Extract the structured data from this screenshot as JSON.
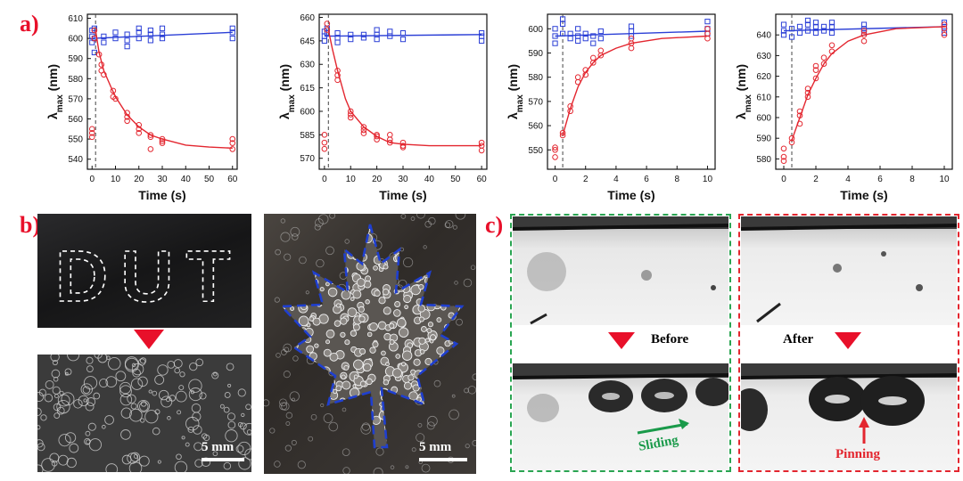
{
  "labels": {
    "a": "a)",
    "b": "b)",
    "c": "c)"
  },
  "chart_data": [
    {
      "type": "scatter",
      "xlabel": "Time (s)",
      "ylabel_base": "λ",
      "ylabel_sub": "max",
      "ylabel_unit": " (nm)",
      "xlim": [
        -2,
        62
      ],
      "ylim": [
        535,
        612
      ],
      "xticks": [
        0,
        10,
        20,
        30,
        40,
        50,
        60
      ],
      "yticks": [
        540,
        550,
        560,
        570,
        580,
        590,
        600,
        610
      ],
      "marker_x": 1.5,
      "series": [
        {
          "marker": "square",
          "color": "#2b3fd6",
          "points": [
            [
              0,
              598
            ],
            [
              0,
              601
            ],
            [
              0,
              604
            ],
            [
              1,
              593
            ],
            [
              1,
              605
            ],
            [
              1,
              600
            ],
            [
              5,
              598
            ],
            [
              5,
              601
            ],
            [
              10,
              600
            ],
            [
              10,
              603
            ],
            [
              15,
              596
            ],
            [
              15,
              599
            ],
            [
              15,
              602
            ],
            [
              20,
              600
            ],
            [
              20,
              603
            ],
            [
              20,
              605
            ],
            [
              25,
              599
            ],
            [
              25,
              602
            ],
            [
              25,
              604
            ],
            [
              30,
              600
            ],
            [
              30,
              602
            ],
            [
              30,
              605
            ],
            [
              60,
              600
            ],
            [
              60,
              603
            ],
            [
              60,
              605
            ]
          ],
          "fit": [
            [
              0,
              600
            ],
            [
              60,
              603
            ]
          ]
        },
        {
          "marker": "circle",
          "color": "#e3262f",
          "points": [
            [
              0,
              551
            ],
            [
              0,
              555
            ],
            [
              0,
              553
            ],
            [
              1,
              604
            ],
            [
              1,
              600
            ],
            [
              3,
              592
            ],
            [
              4,
              584
            ],
            [
              4,
              587
            ],
            [
              5,
              582
            ],
            [
              9,
              574
            ],
            [
              9,
              571
            ],
            [
              10,
              570
            ],
            [
              15,
              563
            ],
            [
              15,
              561
            ],
            [
              15,
              559
            ],
            [
              20,
              557
            ],
            [
              20,
              555
            ],
            [
              20,
              553
            ],
            [
              25,
              552
            ],
            [
              25,
              545
            ],
            [
              25,
              551
            ],
            [
              30,
              550
            ],
            [
              30,
              548
            ],
            [
              30,
              549
            ],
            [
              60,
              550
            ],
            [
              60,
              548
            ],
            [
              60,
              545
            ]
          ],
          "fit": [
            [
              1.5,
              604
            ],
            [
              3,
              593
            ],
            [
              5,
              584
            ],
            [
              8,
              576
            ],
            [
              10,
              571
            ],
            [
              15,
              562
            ],
            [
              20,
              556
            ],
            [
              25,
              552
            ],
            [
              30,
              550
            ],
            [
              40,
              547
            ],
            [
              50,
              546
            ],
            [
              60,
              545.5
            ]
          ]
        }
      ]
    },
    {
      "type": "scatter",
      "xlabel": "Time (s)",
      "ylabel_base": "λ",
      "ylabel_sub": "max",
      "ylabel_unit": " (nm)",
      "xlim": [
        -2,
        62
      ],
      "ylim": [
        563,
        662
      ],
      "xticks": [
        0,
        10,
        20,
        30,
        40,
        50,
        60
      ],
      "yticks": [
        570,
        585,
        600,
        615,
        630,
        645,
        660
      ],
      "marker_x": 1.5,
      "series": [
        {
          "marker": "square",
          "color": "#2b3fd6",
          "points": [
            [
              0,
              645
            ],
            [
              0,
              648
            ],
            [
              0,
              651
            ],
            [
              1,
              650
            ],
            [
              1,
              653
            ],
            [
              5,
              644
            ],
            [
              5,
              647
            ],
            [
              5,
              650
            ],
            [
              10,
              646
            ],
            [
              10,
              649
            ],
            [
              15,
              647
            ],
            [
              15,
              649
            ],
            [
              20,
              646
            ],
            [
              20,
              649
            ],
            [
              20,
              652
            ],
            [
              25,
              648
            ],
            [
              25,
              651
            ],
            [
              30,
              646
            ],
            [
              30,
              650
            ],
            [
              60,
              645
            ],
            [
              60,
              648
            ],
            [
              60,
              650
            ]
          ],
          "fit": [
            [
              0,
              648
            ],
            [
              60,
              649
            ]
          ]
        },
        {
          "marker": "circle",
          "color": "#e3262f",
          "points": [
            [
              0,
              585
            ],
            [
              0,
              580
            ],
            [
              0,
              576
            ],
            [
              1,
              656
            ],
            [
              1,
              652
            ],
            [
              5,
              626
            ],
            [
              5,
              623
            ],
            [
              5,
              620
            ],
            [
              10,
              600
            ],
            [
              10,
              598
            ],
            [
              10,
              596
            ],
            [
              15,
              590
            ],
            [
              15,
              588
            ],
            [
              15,
              586
            ],
            [
              20,
              584
            ],
            [
              20,
              582
            ],
            [
              20,
              585
            ],
            [
              25,
              585
            ],
            [
              25,
              582
            ],
            [
              25,
              580
            ],
            [
              30,
              580
            ],
            [
              30,
              578
            ],
            [
              30,
              577
            ],
            [
              60,
              580
            ],
            [
              60,
              578
            ],
            [
              60,
              575
            ]
          ],
          "fit": [
            [
              1.5,
              652
            ],
            [
              3,
              640
            ],
            [
              5,
              626
            ],
            [
              8,
              608
            ],
            [
              10,
              600
            ],
            [
              15,
              590
            ],
            [
              20,
              584
            ],
            [
              25,
              580
            ],
            [
              30,
              579
            ],
            [
              40,
              578
            ],
            [
              60,
              578
            ]
          ]
        }
      ]
    },
    {
      "type": "scatter",
      "xlabel": "Time (s)",
      "ylabel_base": "λ",
      "ylabel_sub": "max",
      "ylabel_unit": " (nm)",
      "xlim": [
        -0.5,
        10.5
      ],
      "ylim": [
        542,
        606
      ],
      "xticks": [
        0,
        2,
        4,
        6,
        8,
        10
      ],
      "yticks": [
        550,
        560,
        570,
        580,
        590,
        600
      ],
      "marker_x": 0.5,
      "series": [
        {
          "marker": "square",
          "color": "#2b3fd6",
          "points": [
            [
              0,
              594
            ],
            [
              0,
              597
            ],
            [
              0,
              600
            ],
            [
              0.5,
              598
            ],
            [
              0.5,
              602
            ],
            [
              0.5,
              604
            ],
            [
              1,
              596
            ],
            [
              1,
              598
            ],
            [
              1.5,
              595
            ],
            [
              1.5,
              597
            ],
            [
              1.5,
              600
            ],
            [
              2,
              596
            ],
            [
              2,
              598
            ],
            [
              2.5,
              594
            ],
            [
              2.5,
              597
            ],
            [
              3,
              596
            ],
            [
              3,
              599
            ],
            [
              5,
              597
            ],
            [
              5,
              599
            ],
            [
              5,
              601
            ],
            [
              10,
              598
            ],
            [
              10,
              600
            ],
            [
              10,
              603
            ]
          ],
          "fit": [
            [
              0,
              597
            ],
            [
              10,
              599
            ]
          ]
        },
        {
          "marker": "circle",
          "color": "#e3262f",
          "points": [
            [
              0,
              547
            ],
            [
              0,
              550
            ],
            [
              0,
              551
            ],
            [
              0.5,
              556
            ],
            [
              0.5,
              557
            ],
            [
              1,
              566
            ],
            [
              1,
              568
            ],
            [
              1.5,
              578
            ],
            [
              1.5,
              580
            ],
            [
              2,
              581
            ],
            [
              2,
              583
            ],
            [
              2.5,
              586
            ],
            [
              2.5,
              588
            ],
            [
              3,
              589
            ],
            [
              3,
              591
            ],
            [
              5,
              592
            ],
            [
              5,
              594
            ],
            [
              5,
              596
            ],
            [
              10,
              596
            ],
            [
              10,
              598
            ],
            [
              10,
              600
            ]
          ],
          "fit": [
            [
              0.5,
              556
            ],
            [
              1,
              567
            ],
            [
              1.5,
              576
            ],
            [
              2,
              582
            ],
            [
              2.5,
              586
            ],
            [
              3,
              589
            ],
            [
              4,
              592
            ],
            [
              5,
              594
            ],
            [
              7,
              596
            ],
            [
              10,
              597
            ]
          ]
        }
      ]
    },
    {
      "type": "scatter",
      "xlabel": "Time (s)",
      "ylabel_base": "λ",
      "ylabel_sub": "max",
      "ylabel_unit": " (nm)",
      "xlim": [
        -0.5,
        10.5
      ],
      "ylim": [
        575,
        650
      ],
      "xticks": [
        0,
        2,
        4,
        6,
        8,
        10
      ],
      "yticks": [
        580,
        590,
        600,
        610,
        620,
        630,
        640
      ],
      "marker_x": 0.5,
      "series": [
        {
          "marker": "square",
          "color": "#2b3fd6",
          "points": [
            [
              0,
              640
            ],
            [
              0,
              642
            ],
            [
              0,
              645
            ],
            [
              0.5,
              639
            ],
            [
              0.5,
              643
            ],
            [
              1,
              641
            ],
            [
              1,
              644
            ],
            [
              1.5,
              642
            ],
            [
              1.5,
              645
            ],
            [
              1.5,
              647
            ],
            [
              2,
              641
            ],
            [
              2,
              644
            ],
            [
              2,
              646
            ],
            [
              2.5,
              642
            ],
            [
              2.5,
              644
            ],
            [
              3,
              641
            ],
            [
              3,
              644
            ],
            [
              3,
              646
            ],
            [
              5,
              641
            ],
            [
              5,
              643
            ],
            [
              5,
              645
            ],
            [
              10,
              641
            ],
            [
              10,
              644
            ],
            [
              10,
              646
            ]
          ],
          "fit": [
            [
              0,
              642
            ],
            [
              10,
              644
            ]
          ]
        },
        {
          "marker": "circle",
          "color": "#e3262f",
          "points": [
            [
              0,
              585
            ],
            [
              0,
              581
            ],
            [
              0,
              579
            ],
            [
              0.5,
              590
            ],
            [
              0.5,
              588
            ],
            [
              1,
              597
            ],
            [
              1,
              601
            ],
            [
              1,
              603
            ],
            [
              1.5,
              610
            ],
            [
              1.5,
              612
            ],
            [
              1.5,
              614
            ],
            [
              2,
              619
            ],
            [
              2,
              623
            ],
            [
              2,
              625
            ],
            [
              2.5,
              626
            ],
            [
              2.5,
              629
            ],
            [
              3,
              632
            ],
            [
              3,
              635
            ],
            [
              5,
              637
            ],
            [
              5,
              640
            ],
            [
              5,
              642
            ],
            [
              10,
              640
            ],
            [
              10,
              643
            ],
            [
              10,
              645
            ]
          ],
          "fit": [
            [
              0.5,
              589
            ],
            [
              1,
              600
            ],
            [
              1.5,
              611
            ],
            [
              2,
              619
            ],
            [
              2.5,
              626
            ],
            [
              3,
              631
            ],
            [
              4,
              637
            ],
            [
              5,
              640
            ],
            [
              7,
              643
            ],
            [
              10,
              644
            ]
          ]
        }
      ]
    }
  ],
  "panel_b": {
    "letters": "DUT",
    "scale_left": "5 mm",
    "scale_right": "5 mm"
  },
  "panel_c": {
    "before": "Before",
    "after": "After",
    "sliding": "Sliding",
    "pinning": "Pinning",
    "colors": {
      "sliding": "#1a9a4a",
      "pinning": "#e3262f",
      "arrow": "#e8102a"
    }
  }
}
